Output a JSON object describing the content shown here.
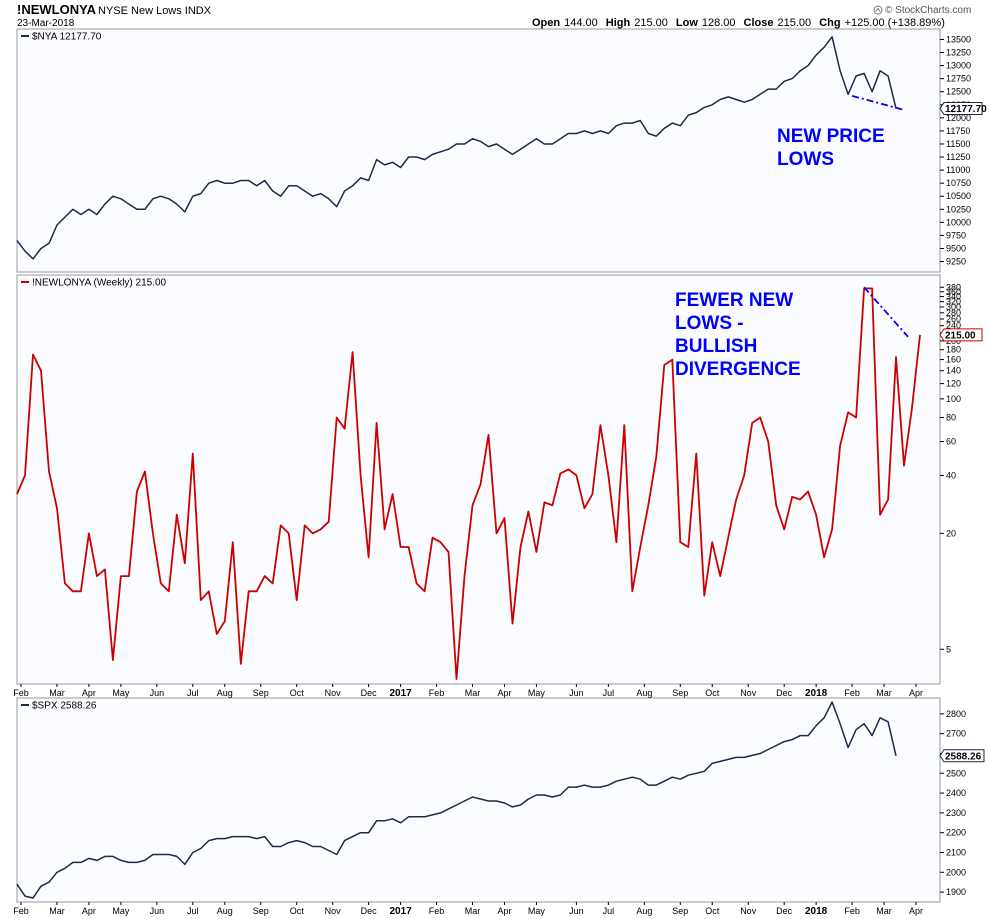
{
  "header": {
    "symbol": "!NEWLONYA",
    "description": "NYSE New Lows  INDX",
    "date": "23-Mar-2018",
    "open_label": "Open",
    "open": "144.00",
    "high_label": "High",
    "high": "215.00",
    "low_label": "Low",
    "low": "128.00",
    "close_label": "Close",
    "close": "215.00",
    "chg_label": "Chg",
    "chg": "+125.00 (+138.89%)",
    "logo": "© StockCharts.com",
    "logo_icon": "up-arrow-icon"
  },
  "x_labels": [
    {
      "week": 0.5,
      "label": "Feb"
    },
    {
      "week": 5,
      "label": "Mar"
    },
    {
      "week": 9,
      "label": "Apr"
    },
    {
      "week": 13,
      "label": "May"
    },
    {
      "week": 17.5,
      "label": "Jun"
    },
    {
      "week": 22,
      "label": "Jul"
    },
    {
      "week": 26,
      "label": "Aug"
    },
    {
      "week": 30.5,
      "label": "Sep"
    },
    {
      "week": 35,
      "label": "Oct"
    },
    {
      "week": 39.5,
      "label": "Nov"
    },
    {
      "week": 44,
      "label": "Dec"
    },
    {
      "week": 48,
      "label": "2017",
      "year": true
    },
    {
      "week": 52.5,
      "label": "Feb"
    },
    {
      "week": 57,
      "label": "Mar"
    },
    {
      "week": 61,
      "label": "Apr"
    },
    {
      "week": 65,
      "label": "May"
    },
    {
      "week": 70,
      "label": "Jun"
    },
    {
      "week": 74,
      "label": "Jul"
    },
    {
      "week": 78.5,
      "label": "Aug"
    },
    {
      "week": 83,
      "label": "Sep"
    },
    {
      "week": 87,
      "label": "Oct"
    },
    {
      "week": 91.5,
      "label": "Nov"
    },
    {
      "week": 96,
      "label": "Dec"
    },
    {
      "week": 100,
      "label": "2018",
      "year": true
    },
    {
      "week": 104.5,
      "label": "Feb"
    },
    {
      "week": 108.5,
      "label": "Mar"
    },
    {
      "week": 112.5,
      "label": "Apr"
    }
  ],
  "chart_data": [
    {
      "type": "line",
      "legend": "$NYA 12177.70",
      "last_value_label": "12177.70",
      "scale": "linear",
      "ylim": [
        9050,
        13700
      ],
      "yticks": [
        9250,
        9500,
        9750,
        10000,
        10250,
        10500,
        10750,
        11000,
        11250,
        11500,
        11750,
        12000,
        12250,
        12500,
        12750,
        13000,
        13250,
        13500
      ],
      "color": "#1c2a4a",
      "annotation": [
        "NEW PRICE",
        "LOWS"
      ],
      "annotation_color": "#0000ff",
      "trendline": {
        "style": "dash-dot",
        "color": "#0000ff",
        "from": [
          104.5,
          12420
        ],
        "to": [
          110.8,
          12160
        ]
      },
      "y": [
        9650,
        9450,
        9300,
        9500,
        9600,
        9950,
        10100,
        10250,
        10150,
        10250,
        10150,
        10350,
        10500,
        10450,
        10350,
        10250,
        10250,
        10450,
        10500,
        10450,
        10350,
        10200,
        10500,
        10550,
        10750,
        10800,
        10750,
        10750,
        10800,
        10800,
        10700,
        10800,
        10600,
        10500,
        10700,
        10700,
        10600,
        10500,
        10550,
        10450,
        10300,
        10600,
        10700,
        10850,
        10800,
        11200,
        11100,
        11150,
        11050,
        11250,
        11250,
        11200,
        11300,
        11350,
        11400,
        11500,
        11500,
        11600,
        11550,
        11450,
        11500,
        11400,
        11300,
        11400,
        11500,
        11600,
        11500,
        11500,
        11600,
        11700,
        11700,
        11750,
        11700,
        11750,
        11700,
        11850,
        11900,
        11900,
        11950,
        11700,
        11650,
        11800,
        11900,
        11850,
        12050,
        12100,
        12200,
        12250,
        12350,
        12400,
        12350,
        12300,
        12350,
        12450,
        12550,
        12550,
        12700,
        12750,
        12900,
        13000,
        13200,
        13350,
        13550,
        12900,
        12450,
        12800,
        12850,
        12500,
        12900,
        12800,
        12177.7
      ]
    },
    {
      "type": "line",
      "legend": "!NEWLONYA (Weekly) 215.00",
      "last_value_label": "215.00",
      "scale": "log",
      "ylim": [
        3.3,
        440
      ],
      "yticks": [
        5,
        20,
        40,
        60,
        80,
        100,
        120,
        140,
        160,
        180,
        200,
        220,
        240,
        260,
        280,
        300,
        320,
        340,
        360,
        380
      ],
      "color": "#cc0000",
      "annotation": [
        "FEWER NEW",
        "LOWS -",
        "BULLISH",
        "DIVERGENCE"
      ],
      "annotation_color": "#0000ff",
      "trendline": {
        "style": "dash-dot",
        "color": "#0000ff",
        "from": [
          106,
          380
        ],
        "to": [
          111.5,
          210
        ]
      },
      "y": [
        32,
        40,
        170,
        140,
        42,
        27,
        11,
        10,
        10,
        20,
        12,
        13,
        4.4,
        12,
        12,
        33,
        42,
        20,
        11,
        10,
        25,
        14,
        52,
        9,
        10,
        6,
        7,
        18,
        4.2,
        10,
        10,
        12,
        11,
        22,
        20,
        9,
        22,
        20,
        21,
        23,
        80,
        70,
        175,
        40,
        15,
        75,
        21,
        32,
        17,
        17,
        11,
        10,
        19,
        18,
        16,
        3.5,
        12,
        28,
        36,
        65,
        20,
        24,
        6.8,
        17,
        26,
        16,
        29,
        28,
        41,
        43,
        40,
        27,
        32,
        73,
        40,
        18,
        73,
        10,
        17,
        28,
        50,
        150,
        160,
        18,
        17,
        52,
        9.5,
        18,
        12,
        19,
        30,
        40,
        75,
        80,
        60,
        28,
        21,
        31,
        30,
        33,
        25,
        15,
        21,
        57,
        85,
        80,
        375,
        375,
        25,
        30,
        165,
        45,
        90,
        215
      ]
    },
    {
      "type": "line",
      "legend": "$SPX 2588.26",
      "last_value_label": "2588.26",
      "scale": "linear",
      "ylim": [
        1850,
        2880
      ],
      "yticks": [
        1900,
        2000,
        2100,
        2200,
        2300,
        2400,
        2500,
        2600,
        2700,
        2800
      ],
      "color": "#1c2a4a",
      "y": [
        1940,
        1880,
        1870,
        1930,
        1950,
        2000,
        2020,
        2050,
        2050,
        2070,
        2060,
        2080,
        2080,
        2060,
        2050,
        2050,
        2060,
        2090,
        2090,
        2090,
        2080,
        2040,
        2100,
        2120,
        2160,
        2170,
        2170,
        2180,
        2180,
        2180,
        2170,
        2180,
        2130,
        2130,
        2150,
        2160,
        2150,
        2130,
        2130,
        2110,
        2090,
        2160,
        2180,
        2200,
        2200,
        2260,
        2260,
        2270,
        2250,
        2280,
        2280,
        2280,
        2290,
        2300,
        2320,
        2340,
        2360,
        2380,
        2370,
        2360,
        2360,
        2350,
        2330,
        2340,
        2370,
        2390,
        2390,
        2380,
        2390,
        2430,
        2430,
        2440,
        2430,
        2430,
        2440,
        2460,
        2470,
        2480,
        2470,
        2440,
        2440,
        2460,
        2480,
        2470,
        2490,
        2500,
        2510,
        2550,
        2560,
        2570,
        2580,
        2580,
        2590,
        2600,
        2620,
        2640,
        2660,
        2670,
        2690,
        2690,
        2740,
        2780,
        2860,
        2750,
        2630,
        2720,
        2750,
        2690,
        2780,
        2760,
        2588.26
      ]
    }
  ]
}
